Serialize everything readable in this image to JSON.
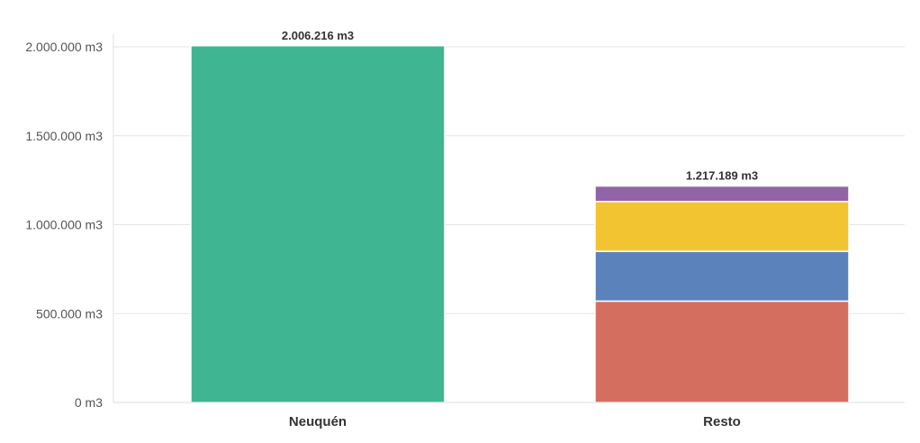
{
  "chart_data": {
    "type": "bar",
    "stacked": true,
    "categories": [
      "Neuquén",
      "Resto"
    ],
    "series": [
      {
        "values": [
          2006216,
          0
        ],
        "color": "#3fb592"
      },
      {
        "values": [
          0,
          570000
        ],
        "color": "#d46f60"
      },
      {
        "values": [
          0,
          280000
        ],
        "color": "#5b82bb"
      },
      {
        "values": [
          0,
          280000
        ],
        "color": "#f3c431"
      },
      {
        "values": [
          0,
          87189
        ],
        "color": "#9064a6"
      }
    ],
    "totals": [
      "2.006.216 m3",
      "1.217.189 m3"
    ],
    "ylim": [
      0,
      2000000
    ],
    "yticks": [
      {
        "value": 0,
        "label": "0 m3"
      },
      {
        "value": 500000,
        "label": "500.000 m3"
      },
      {
        "value": 1000000,
        "label": "1.000.000 m3"
      },
      {
        "value": 1500000,
        "label": "1.500.000 m3"
      },
      {
        "value": 2000000,
        "label": "2.000.000 m3"
      }
    ],
    "grid": true,
    "legend": "none"
  }
}
